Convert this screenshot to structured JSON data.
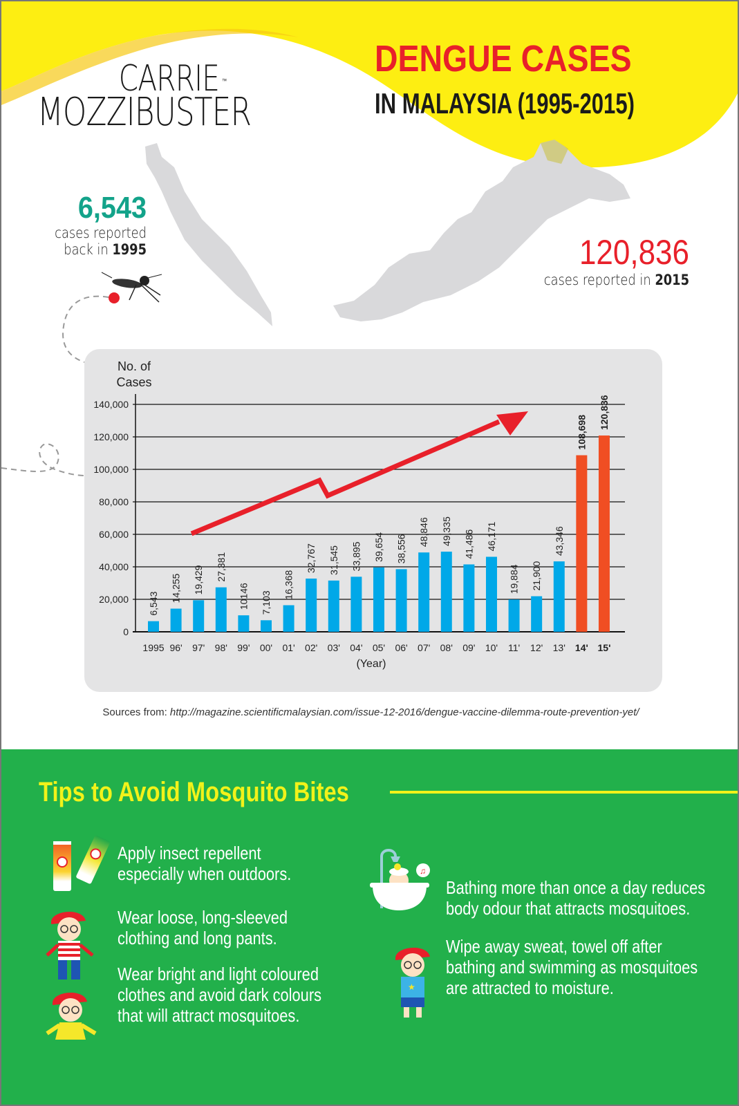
{
  "brand": {
    "line1": "CARRIE",
    "tm": "™",
    "line2": "MOZZIBUSTER"
  },
  "header": {
    "title_line1": "DENGUE CASES",
    "title_line2": "IN MALAYSIA (1995-2015)"
  },
  "callouts": {
    "left": {
      "number": "6,543",
      "text1": "cases reported",
      "text2_prefix": "back in ",
      "year": "1995"
    },
    "right": {
      "number": "120,836",
      "text_prefix": "cases reported in ",
      "year": "2015"
    }
  },
  "colors": {
    "yellow": "#fdee12",
    "red": "#e8202a",
    "teal": "#13a38a",
    "blue_bar": "#00a8e8",
    "orange_bar": "#f04e23",
    "green": "#22b04b",
    "tip_title": "#f2f21a",
    "panel": "#e4e4e5"
  },
  "chart_data": {
    "type": "bar",
    "title": "Dengue Cases in Malaysia (1995-2015)",
    "xlabel": "(Year)",
    "ylabel": "No. of Cases",
    "ylim": [
      0,
      140000
    ],
    "yticks": [
      "0",
      "20,000",
      "40,000",
      "60,000",
      "80,000",
      "100,000",
      "120,000",
      "140,000"
    ],
    "grid": true,
    "categories": [
      "1995",
      "96'",
      "97'",
      "98'",
      "99'",
      "00'",
      "01'",
      "02'",
      "03'",
      "04'",
      "05'",
      "06'",
      "07'",
      "08'",
      "09'",
      "10'",
      "11'",
      "12'",
      "13'",
      "14'",
      "15'"
    ],
    "values": [
      6543,
      14255,
      19429,
      27381,
      10146,
      7103,
      16368,
      32767,
      31545,
      33895,
      39654,
      38556,
      48846,
      49335,
      41486,
      46171,
      19884,
      21900,
      43346,
      108698,
      120836
    ],
    "value_labels": [
      "6,543",
      "14,255",
      "19,429",
      "27,381",
      "10146",
      "7,103",
      "16,368",
      "32,767",
      "31,545",
      "33,895",
      "39,654",
      "38,556",
      "48,846",
      "49,335",
      "41,486",
      "46,171",
      "19,884",
      "21,900",
      "43,346",
      "108,698",
      "120,836"
    ],
    "highlighted": [
      "14'",
      "15'"
    ],
    "annotation": "Red upward trend arrow from 97' rising to above 13'"
  },
  "source": {
    "label": "Sources from: ",
    "url": "http://magazine.scientificmalaysian.com/issue-12-2016/dengue-vaccine-dilemma-route-prevention-yet/"
  },
  "tips": {
    "title": "Tips to Avoid Mosquito Bites",
    "items": [
      {
        "icon": "repellent-tubes-icon",
        "line1": "Apply insect repellent",
        "line2": "especially when outdoors.",
        "line3": ""
      },
      {
        "icon": "boy-striped-shirt-icon",
        "line1": "Wear loose, long-sleeved",
        "line2": "clothing and long pants.",
        "line3": ""
      },
      {
        "icon": "boy-yellow-shirt-icon",
        "line1": "Wear bright and light coloured",
        "line2": "clothes and avoid dark colours",
        "line3": "that will attract mosquitoes."
      },
      {
        "icon": "bathtub-icon",
        "line1": "Bathing more than once a day reduces",
        "line2": "body odour that attracts mosquitoes.",
        "line3": ""
      },
      {
        "icon": "boy-towel-icon",
        "line1": "Wipe away sweat, towel off after",
        "line2": "bathing and swimming as mosquitoes",
        "line3": "are attracted to moisture."
      }
    ]
  }
}
